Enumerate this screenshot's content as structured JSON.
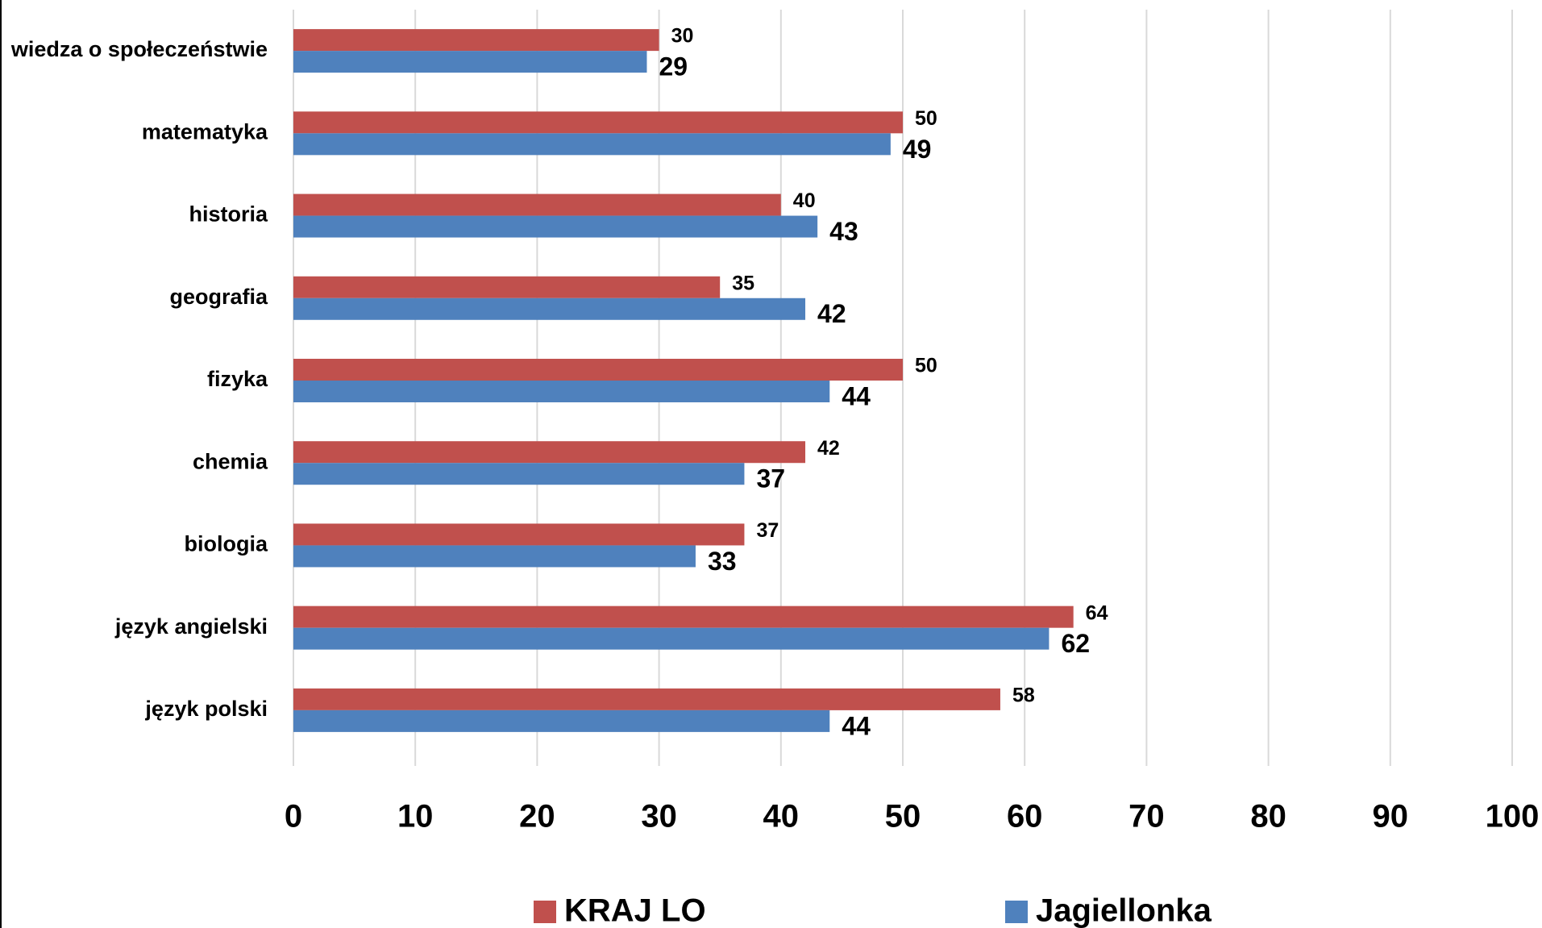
{
  "chart_data": {
    "type": "hbar",
    "categories": [
      "wiedza o społeczeństwie",
      "matematyka",
      "historia",
      "geografia",
      "fizyka",
      "chemia",
      "biologia",
      "język angielski",
      "język polski"
    ],
    "series": [
      {
        "name": "KRAJ LO",
        "color": "#c0504d",
        "values": [
          30,
          50,
          40,
          35,
          50,
          42,
          37,
          64,
          58
        ]
      },
      {
        "name": "Jagiellonka",
        "color": "#4f81bd",
        "values": [
          29,
          49,
          43,
          42,
          44,
          37,
          33,
          62,
          44
        ]
      }
    ],
    "xlim": [
      0,
      100
    ],
    "xticks": [
      0,
      10,
      20,
      30,
      40,
      50,
      60,
      70,
      80,
      90,
      100
    ],
    "grid": true,
    "legend": "bottom"
  }
}
